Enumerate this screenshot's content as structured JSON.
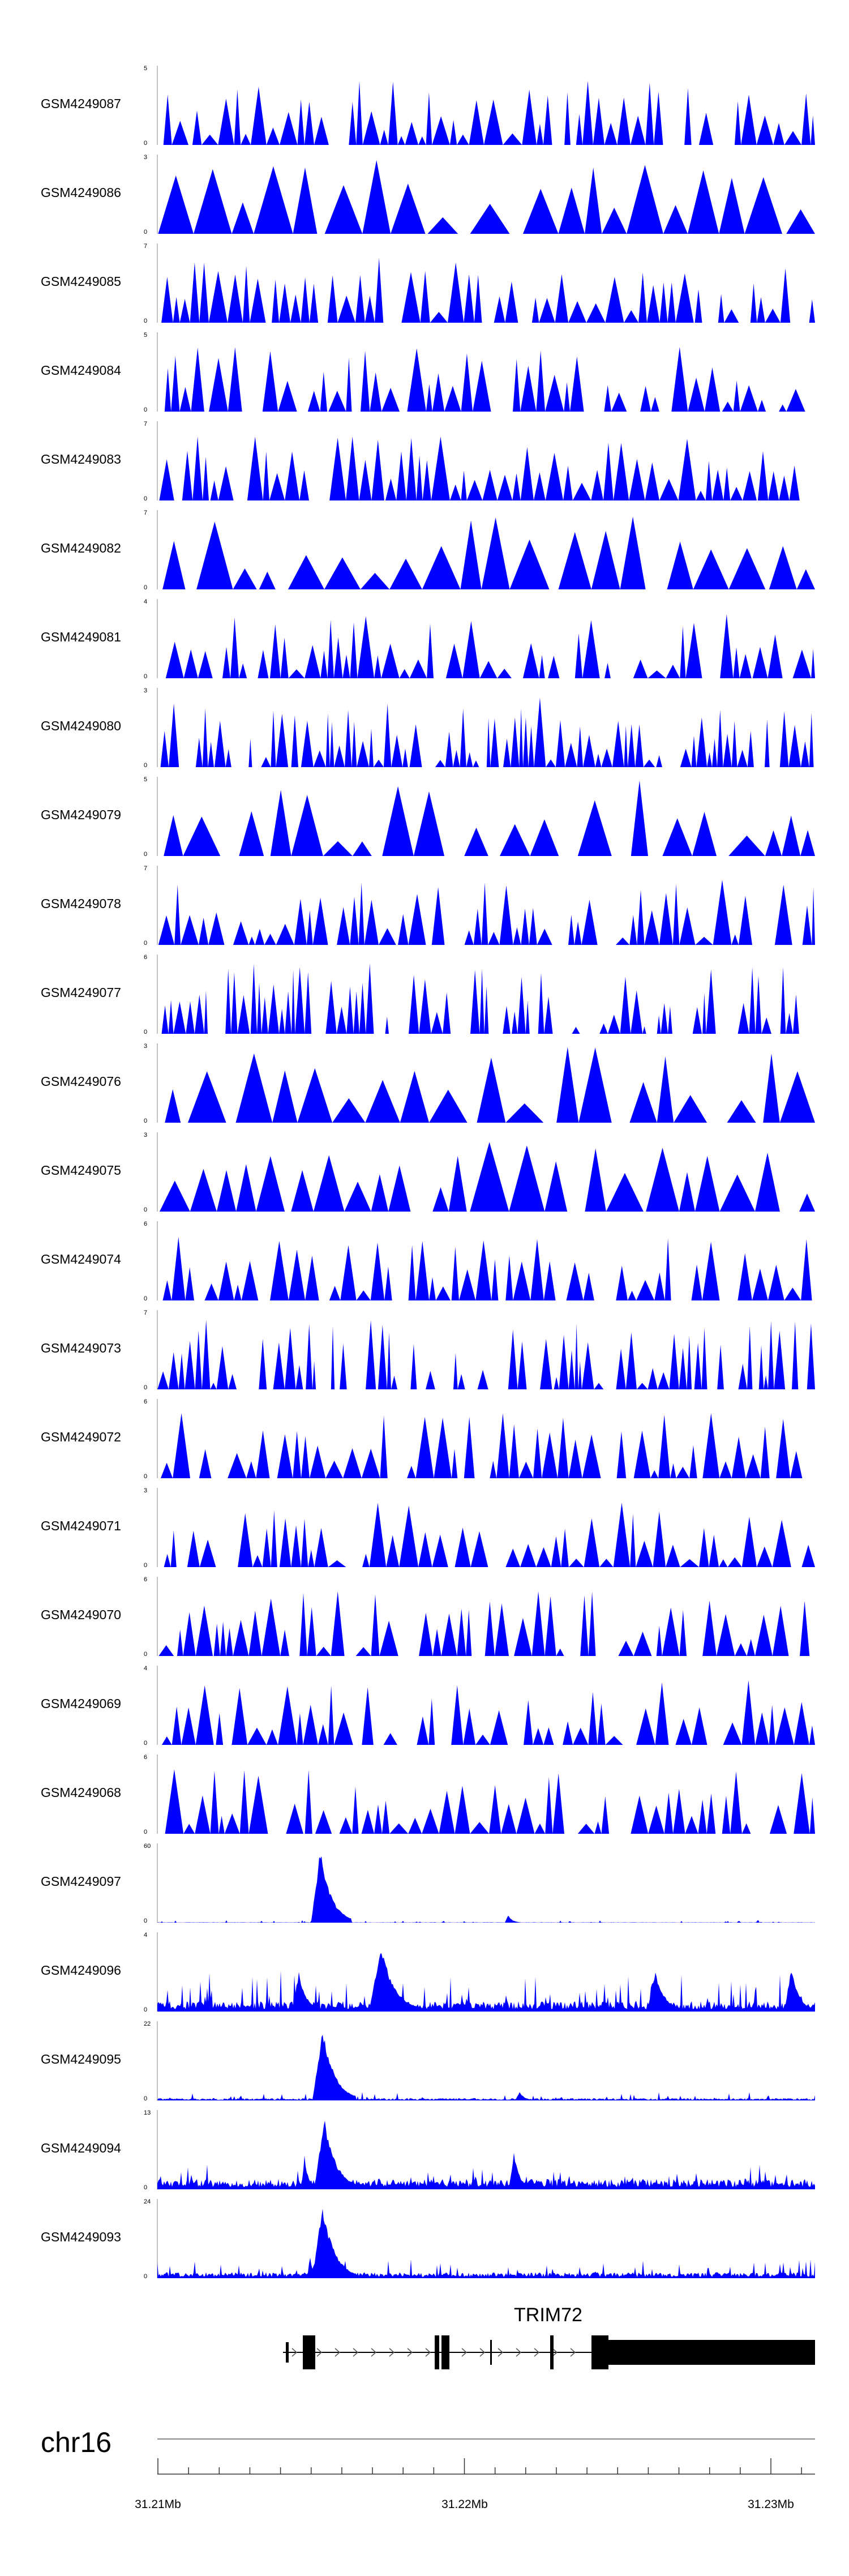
{
  "colors": {
    "signal": "#0000ff",
    "axis": "#888888",
    "gene": "#000000"
  },
  "tracks": [
    {
      "label": "GSM4249087",
      "ymax": "5",
      "ymin": "0",
      "pattern": "spiky"
    },
    {
      "label": "GSM4249086",
      "ymax": "3",
      "ymin": "0",
      "pattern": "sparse"
    },
    {
      "label": "GSM4249085",
      "ymax": "7",
      "ymin": "0",
      "pattern": "spiky"
    },
    {
      "label": "GSM4249084",
      "ymax": "5",
      "ymin": "0",
      "pattern": "spiky"
    },
    {
      "label": "GSM4249083",
      "ymax": "7",
      "ymin": "0",
      "pattern": "spiky"
    },
    {
      "label": "GSM4249082",
      "ymax": "7",
      "ymin": "0",
      "pattern": "sparse"
    },
    {
      "label": "GSM4249081",
      "ymax": "4",
      "ymin": "0",
      "pattern": "spiky"
    },
    {
      "label": "GSM4249080",
      "ymax": "3",
      "ymin": "0",
      "pattern": "dense"
    },
    {
      "label": "GSM4249079",
      "ymax": "5",
      "ymin": "0",
      "pattern": "sparse"
    },
    {
      "label": "GSM4249078",
      "ymax": "7",
      "ymin": "0",
      "pattern": "spiky"
    },
    {
      "label": "GSM4249077",
      "ymax": "6",
      "ymin": "0",
      "pattern": "dense"
    },
    {
      "label": "GSM4249076",
      "ymax": "3",
      "ymin": "0",
      "pattern": "sparse"
    },
    {
      "label": "GSM4249075",
      "ymax": "3",
      "ymin": "0",
      "pattern": "sparse"
    },
    {
      "label": "GSM4249074",
      "ymax": "6",
      "ymin": "0",
      "pattern": "spiky"
    },
    {
      "label": "GSM4249073",
      "ymax": "7",
      "ymin": "0",
      "pattern": "dense"
    },
    {
      "label": "GSM4249072",
      "ymax": "6",
      "ymin": "0",
      "pattern": "spiky"
    },
    {
      "label": "GSM4249071",
      "ymax": "3",
      "ymin": "0",
      "pattern": "spiky"
    },
    {
      "label": "GSM4249070",
      "ymax": "6",
      "ymin": "0",
      "pattern": "spiky"
    },
    {
      "label": "GSM4249069",
      "ymax": "4",
      "ymin": "0",
      "pattern": "spiky"
    },
    {
      "label": "GSM4249068",
      "ymax": "6",
      "ymin": "0",
      "pattern": "spiky"
    },
    {
      "label": "GSM4249097",
      "ymax": "60",
      "ymin": "0",
      "pattern": "peak97"
    },
    {
      "label": "GSM4249096",
      "ymax": "4",
      "ymin": "0",
      "pattern": "continuous"
    },
    {
      "label": "GSM4249095",
      "ymax": "22",
      "ymin": "0",
      "pattern": "peak95"
    },
    {
      "label": "GSM4249094",
      "ymax": "13",
      "ymin": "0",
      "pattern": "peak94"
    },
    {
      "label": "GSM4249093",
      "ymax": "24",
      "ymin": "0",
      "pattern": "peak93"
    }
  ],
  "gene": {
    "name": "TRIM72"
  },
  "chromosome": {
    "name": "chr16"
  },
  "axis": {
    "ticks": [
      "31.21Mb",
      "31.22Mb",
      "31.23Mb"
    ]
  }
}
